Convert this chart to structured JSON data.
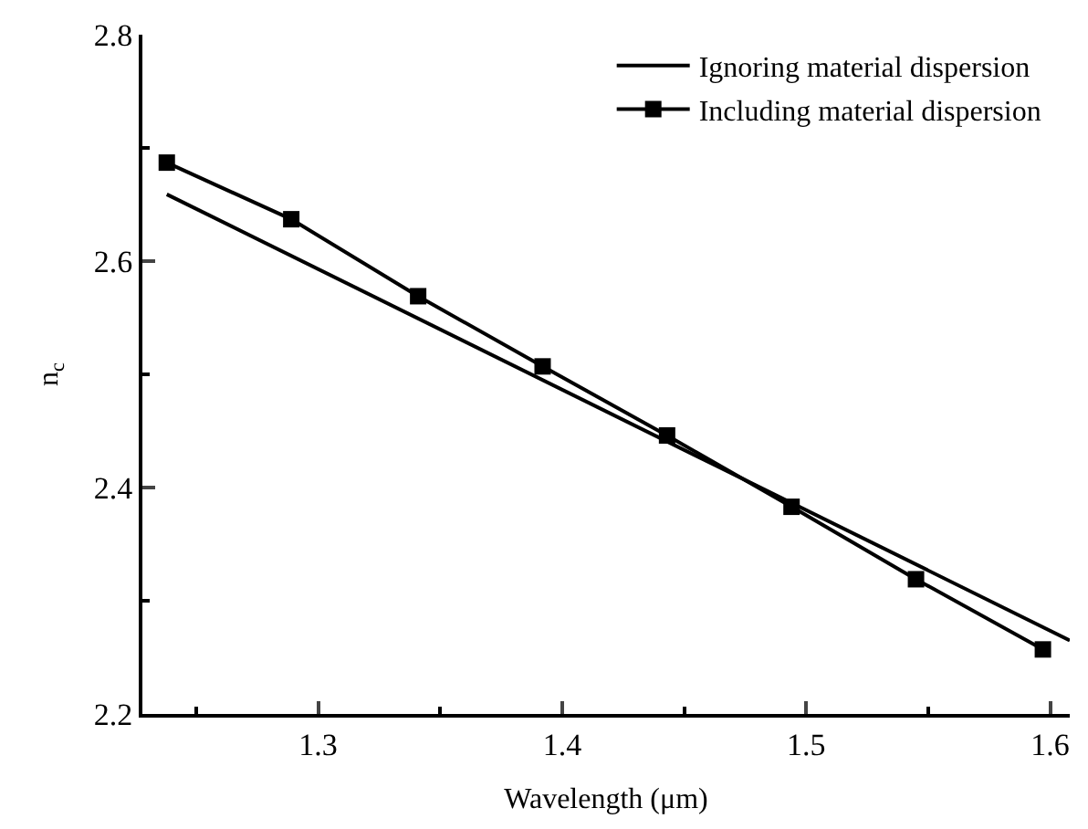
{
  "chart_data": {
    "type": "line",
    "xlabel": "Wavelength (μm)",
    "ylabel": "n$_{c}$",
    "series": [
      {
        "name": "Ignoring material dispersion",
        "color": "#000000",
        "marker": "none",
        "x": [
          1.238,
          1.608
        ],
        "values": [
          2.659,
          2.265
        ]
      },
      {
        "name": "Including material dispersion",
        "color": "#000000",
        "marker": "square",
        "x": [
          1.238,
          1.289,
          1.341,
          1.392,
          1.443,
          1.494,
          1.545,
          1.597
        ],
        "values": [
          2.687,
          2.637,
          2.569,
          2.507,
          2.446,
          2.383,
          2.319,
          2.257
        ]
      }
    ],
    "xlim": [
      1.228,
      1.608
    ],
    "ylim": [
      2.2,
      2.8
    ],
    "xticks": [
      {
        "value": 1.25,
        "label": null
      },
      1.3,
      {
        "value": 1.35,
        "label": null
      },
      1.4,
      {
        "value": 1.45,
        "label": null
      },
      1.5,
      {
        "value": 1.55,
        "label": null
      },
      1.6
    ],
    "yticks": [
      2.2,
      {
        "value": 2.3,
        "label": null
      },
      2.4,
      {
        "value": 2.5,
        "label": null
      },
      2.6,
      {
        "value": 2.7,
        "label": null
      },
      2.8
    ],
    "legend": "top right",
    "line_style": "solid"
  }
}
